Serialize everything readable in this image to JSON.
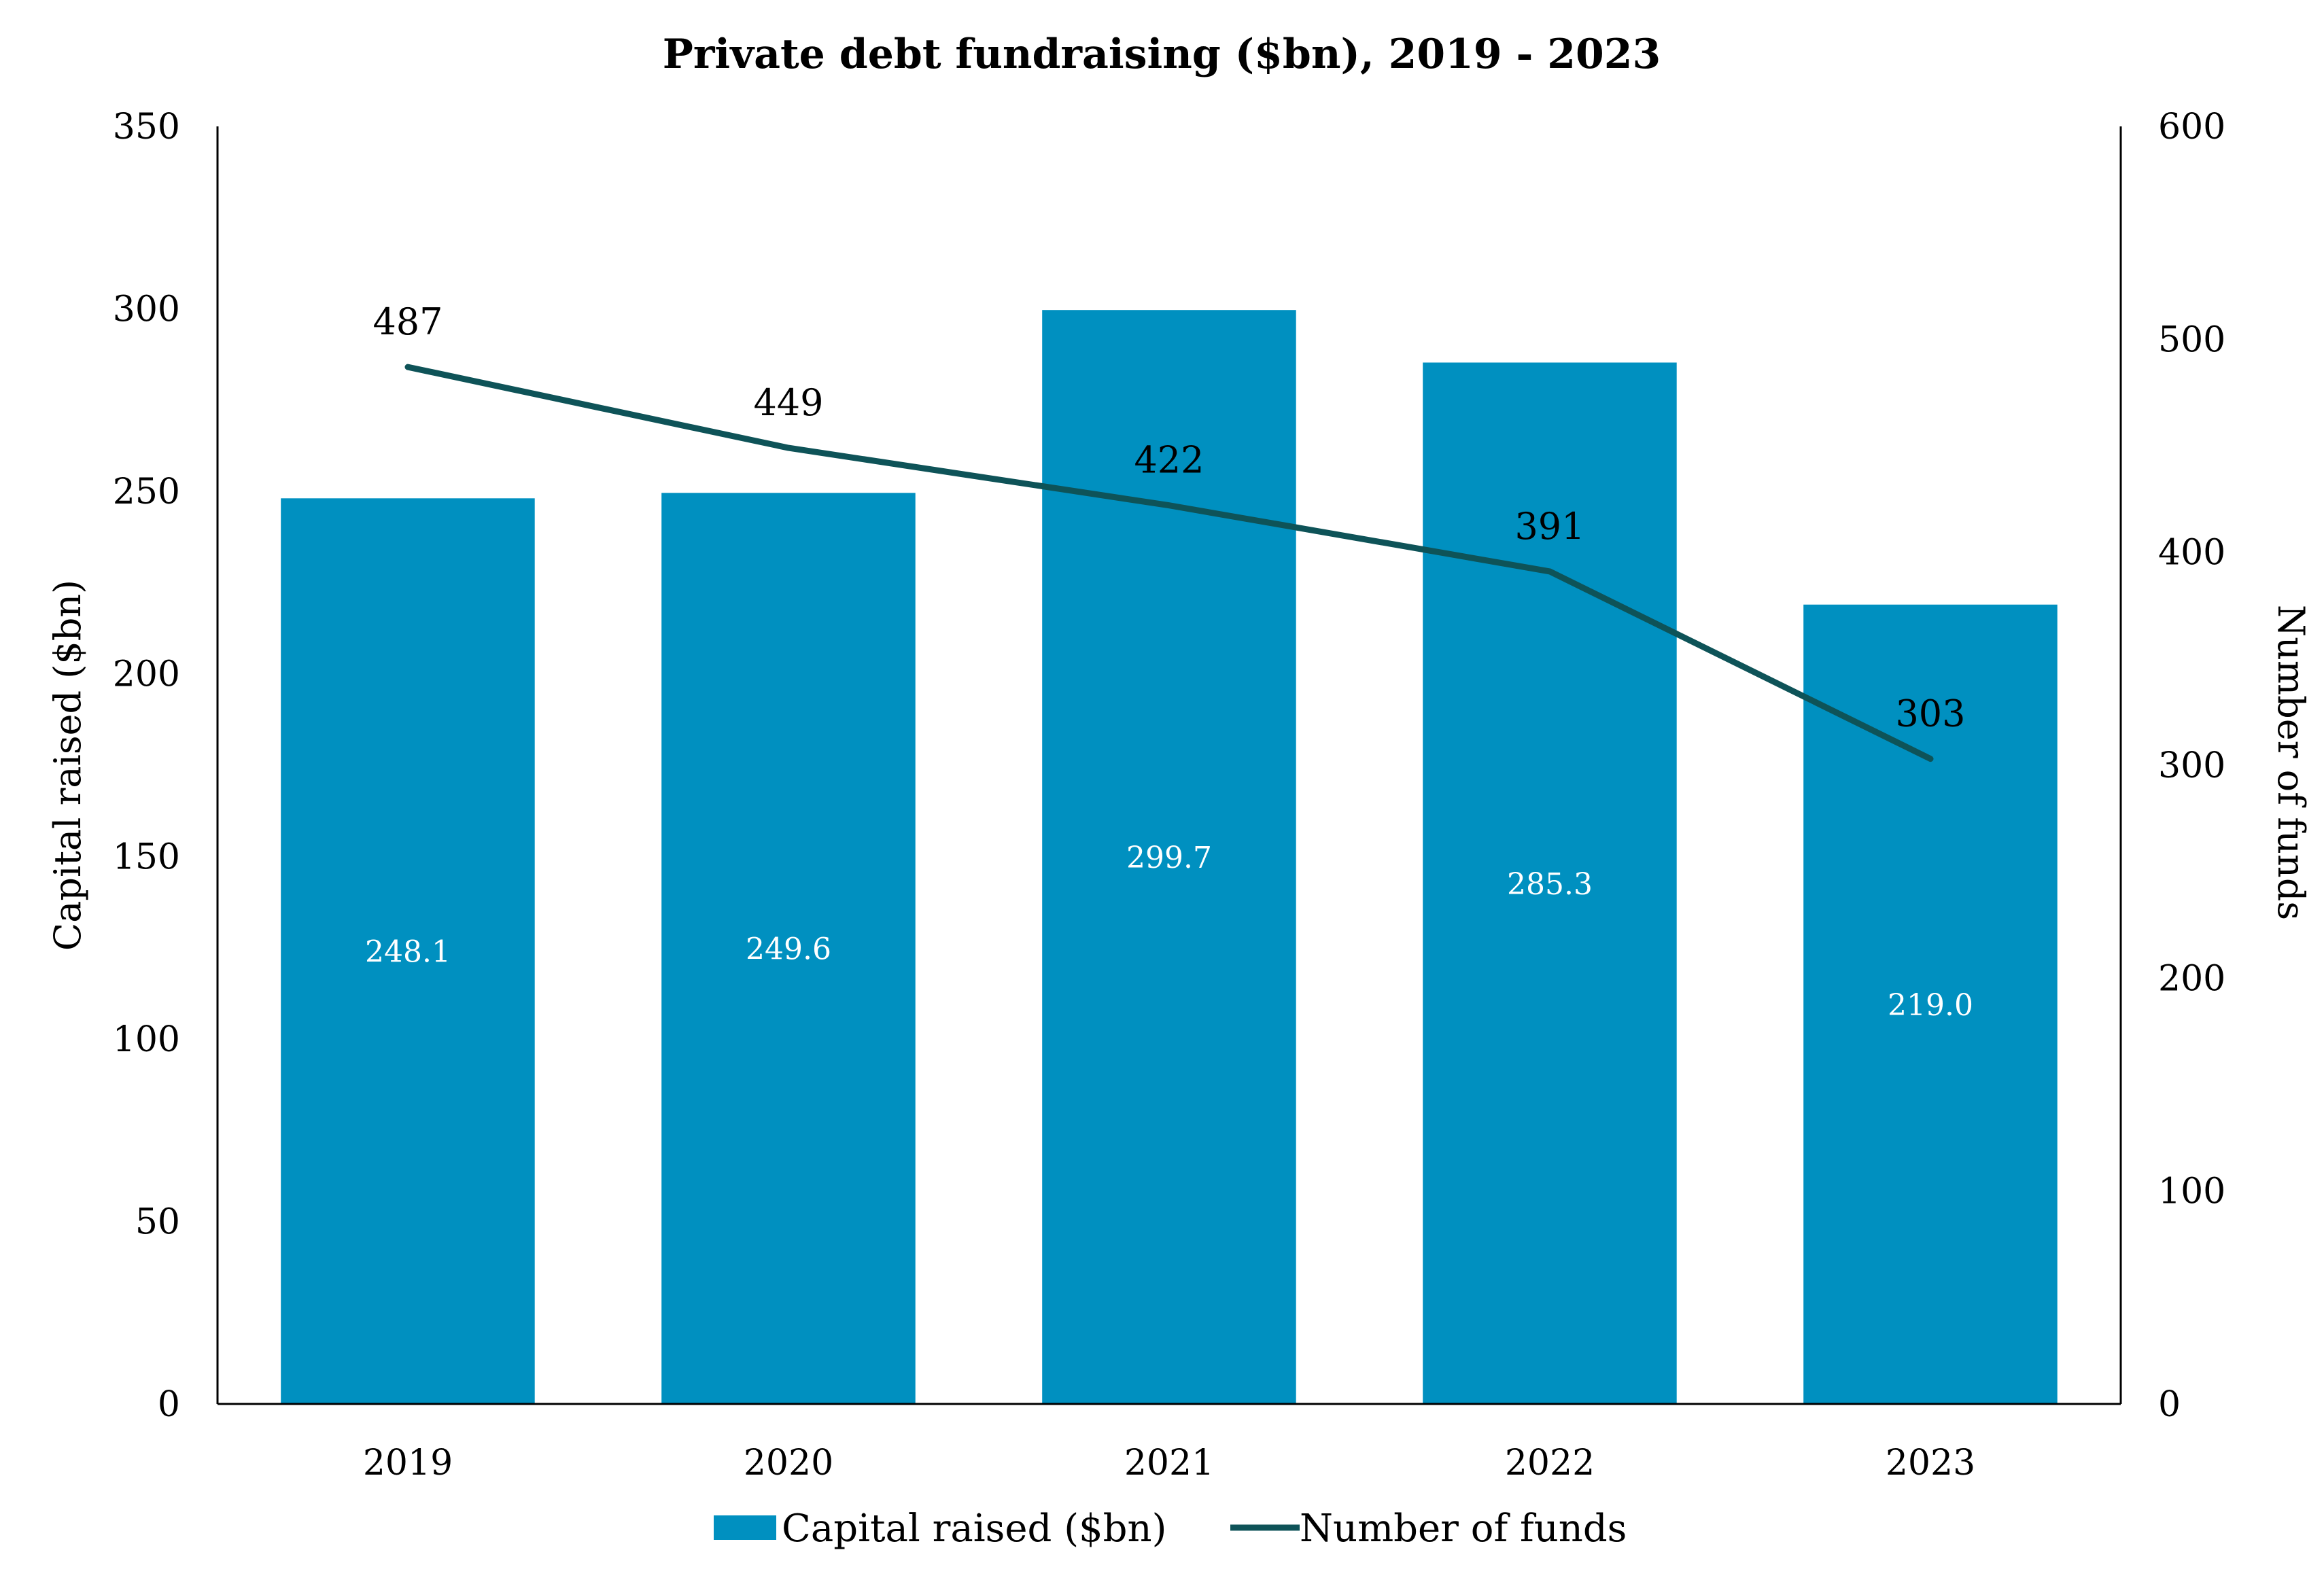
{
  "chart_data": {
    "type": "bar",
    "title": "Private debt fundraising ($bn), 2019 - 2023",
    "categories": [
      "2019",
      "2020",
      "2021",
      "2022",
      "2023"
    ],
    "series": [
      {
        "name": "Capital raised ($bn)",
        "type": "bar",
        "axis": "left",
        "color": "#0090C0",
        "values": [
          248.1,
          249.6,
          299.7,
          285.3,
          219.0
        ],
        "labels": [
          "248.1",
          "249.6",
          "299.7",
          "285.3",
          "219.0"
        ]
      },
      {
        "name": "Number of funds",
        "type": "line",
        "axis": "right",
        "color": "#0E5358",
        "values": [
          487,
          449,
          422,
          391,
          303
        ],
        "labels": [
          "487",
          "449",
          "422",
          "391",
          "303"
        ]
      }
    ],
    "y_left": {
      "label": "Capital raised ($bn)",
      "range": [
        0,
        350
      ],
      "ticks": [
        0,
        50,
        100,
        150,
        200,
        250,
        300,
        350
      ],
      "tick_labels": [
        "0",
        "50",
        "100",
        "150",
        "200",
        "250",
        "300",
        "350"
      ]
    },
    "y_right": {
      "label": "Number of funds",
      "range": [
        0,
        600
      ],
      "ticks": [
        0,
        100,
        200,
        300,
        400,
        500,
        600
      ],
      "tick_labels": [
        "0",
        "100",
        "200",
        "300",
        "400",
        "500",
        "600"
      ]
    },
    "grid": false,
    "legend_position": "bottom"
  }
}
